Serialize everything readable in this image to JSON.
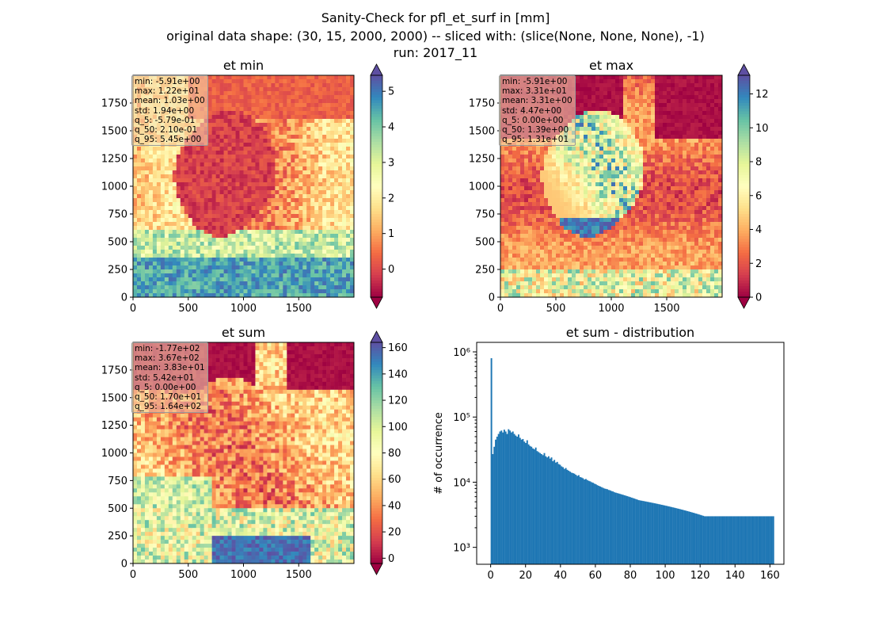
{
  "suptitle": {
    "line1": "Sanity-Check for pfl_et_surf in [mm]",
    "line2": "original data shape: (30, 15, 2000, 2000) -- sliced with: (slice(None, None, None), -1)",
    "line3": "run: 2017_11"
  },
  "colors": {
    "spectral": [
      "#9e0142",
      "#d53e4f",
      "#f46d43",
      "#fdae61",
      "#fee08b",
      "#ffffbf",
      "#e6f598",
      "#abdda4",
      "#66c2a5",
      "#3288bd",
      "#5e4fa2"
    ],
    "hist_bar": "#1f77b4",
    "axis": "#000000"
  },
  "chart_data": [
    {
      "type": "heatmap",
      "title": "et min",
      "colormap": "Spectral",
      "x_ticks": [
        "0",
        "500",
        "1000",
        "1500"
      ],
      "y_ticks": [
        "0",
        "250",
        "500",
        "750",
        "1000",
        "1250",
        "1500",
        "1750"
      ],
      "xlim": [
        0,
        2000
      ],
      "ylim": [
        0,
        2000
      ],
      "colorbar": {
        "ticks": [
          "0",
          "1",
          "2",
          "3",
          "4",
          "5"
        ],
        "vmin": -0.79,
        "vmax": 5.45,
        "extend": "both"
      },
      "stats": [
        "min: -5.91e+00",
        "max: 1.22e+01",
        "mean: 1.03e+00",
        "std: 1.94e+00",
        "q_5: -5.79e-01",
        "q_50: 2.10e-01",
        "q_95: 5.45e+00"
      ]
    },
    {
      "type": "heatmap",
      "title": "et max",
      "colormap": "Spectral",
      "x_ticks": [
        "0",
        "500",
        "1000",
        "1500"
      ],
      "y_ticks": [
        "0",
        "250",
        "500",
        "750",
        "1000",
        "1250",
        "1500",
        "1750"
      ],
      "xlim": [
        0,
        2000
      ],
      "ylim": [
        0,
        2000
      ],
      "colorbar": {
        "ticks": [
          "0",
          "2",
          "4",
          "6",
          "8",
          "10",
          "12"
        ],
        "vmin": 0,
        "vmax": 13.1,
        "extend": "both"
      },
      "stats": [
        "min: -5.91e+00",
        "max: 3.31e+01",
        "mean: 3.31e+00",
        "std: 4.47e+00",
        "q_5: 0.00e+00",
        "q_50: 1.39e+00",
        "q_95: 1.31e+01"
      ]
    },
    {
      "type": "heatmap",
      "title": "et sum",
      "colormap": "Spectral",
      "x_ticks": [
        "0",
        "500",
        "1000",
        "1500"
      ],
      "y_ticks": [
        "0",
        "250",
        "500",
        "750",
        "1000",
        "1250",
        "1500",
        "1750"
      ],
      "xlim": [
        0,
        2000
      ],
      "ylim": [
        0,
        2000
      ],
      "colorbar": {
        "ticks": [
          "0",
          "20",
          "40",
          "60",
          "80",
          "100",
          "120",
          "140",
          "160"
        ],
        "vmin": -4,
        "vmax": 164,
        "extend": "both"
      },
      "stats": [
        "min: -1.77e+02",
        "max: 3.67e+02",
        "mean: 3.83e+01",
        "std: 5.42e+01",
        "q_5: 0.00e+00",
        "q_50: 1.70e+01",
        "q_95: 1.64e+02"
      ]
    },
    {
      "type": "bar",
      "title": "et sum - distribution",
      "ylabel": "# of occurrence",
      "yscale": "log",
      "xlim": [
        -8,
        168
      ],
      "ylim": [
        550,
        1400000
      ],
      "x_ticks": [
        0,
        20,
        40,
        60,
        80,
        100,
        120,
        140,
        160
      ],
      "y_ticks": [
        {
          "value": 1000,
          "label": "10³"
        },
        {
          "value": 10000,
          "label": "10⁴"
        },
        {
          "value": 100000,
          "label": "10⁵"
        },
        {
          "value": 1000000,
          "label": "10⁶"
        }
      ],
      "bin_start": 0,
      "bin_width": 0.82,
      "values": [
        800000,
        27000,
        35000,
        45000,
        50000,
        55000,
        60000,
        62000,
        58000,
        64000,
        60000,
        55000,
        65000,
        62000,
        58000,
        60000,
        55000,
        52000,
        50000,
        54000,
        48000,
        45000,
        46000,
        42000,
        40000,
        44000,
        38000,
        36000,
        35000,
        33000,
        32000,
        34000,
        30000,
        29000,
        28000,
        27000,
        26000,
        28000,
        25000,
        24000,
        25000,
        23000,
        24000,
        21000,
        22000,
        20000,
        20500,
        19000,
        18500,
        17500,
        17000,
        16000,
        16500,
        15500,
        15000,
        14500,
        14000,
        13800,
        13500,
        13000,
        12500,
        12800,
        12000,
        11800,
        11500,
        11000,
        11200,
        10800,
        10500,
        10300,
        10000,
        9800,
        9500,
        9300,
        9000,
        8800,
        8600,
        8400,
        8200,
        8000,
        7900,
        7800,
        7600,
        7500,
        7300,
        7200,
        7000,
        6900,
        6800,
        6700,
        6600,
        6500,
        6400,
        6300,
        6200,
        6100,
        6000,
        5900,
        5800,
        5700,
        5600,
        5500,
        5400,
        5300,
        5250,
        5200,
        5150,
        5100,
        5050,
        5000,
        4950,
        4900,
        4850,
        4800,
        4750,
        4700,
        4650,
        4600,
        4550,
        4500,
        4450,
        4400,
        4350,
        4300,
        4250,
        4200,
        4150,
        4100,
        4050,
        4000,
        3950,
        3900,
        3850,
        3800,
        3750,
        3700,
        3650,
        3600,
        3550,
        3500,
        3450,
        3400,
        3350,
        3300,
        3250,
        3200,
        3150,
        3100,
        3050,
        3000,
        3000,
        3000,
        3000,
        3000,
        3000,
        3000,
        3000,
        3000,
        3000,
        3000,
        3000,
        3000,
        3000,
        3000,
        3000,
        3000,
        3000,
        3000,
        3000,
        3000,
        3000,
        3000,
        3000,
        3000,
        3000,
        3000,
        3000,
        3000,
        3000,
        3000,
        3000,
        3000,
        3000,
        3000,
        3000,
        3000,
        3000,
        3000,
        3000,
        3000,
        3000,
        3000,
        3000,
        3000,
        3000,
        3000,
        3000,
        3000
      ]
    }
  ]
}
